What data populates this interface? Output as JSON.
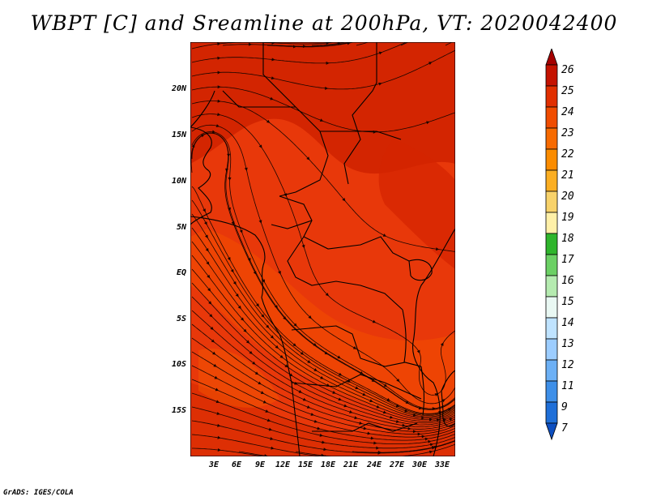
{
  "title": "WBPT [C] and Sreamline at 200hPa, VT: 2020042400",
  "credit": "GrADS: IGES/COLA",
  "lat_labels": [
    "20N",
    "15N",
    "10N",
    "5N",
    "EQ",
    "5S",
    "10S",
    "15S"
  ],
  "lon_labels": [
    "3E",
    "6E",
    "9E",
    "12E",
    "15E",
    "18E",
    "21E",
    "24E",
    "27E",
    "30E",
    "33E"
  ],
  "colorbar": {
    "labels": [
      "26",
      "25",
      "24",
      "23",
      "22",
      "21",
      "20",
      "19",
      "18",
      "17",
      "16",
      "15",
      "14",
      "13",
      "12",
      "11",
      "9",
      "7"
    ],
    "colors": [
      "#a50000",
      "#c41200",
      "#e12f00",
      "#f04c00",
      "#f76a00",
      "#fb8c00",
      "#fbae22",
      "#f8d26a",
      "#fff0a8",
      "#2fb52c",
      "#6bd064",
      "#b5ebb0",
      "#e9f8f3",
      "#bfe3ff",
      "#9ccdff",
      "#6cb0f5",
      "#3e8fe8",
      "#1f6fd8",
      "#0e4fc0"
    ]
  },
  "map": {
    "field_colors": [
      "#e12f00",
      "#f04c00",
      "#c41200"
    ],
    "streamline_color": "#1a0500",
    "border_color": "#000000"
  }
}
